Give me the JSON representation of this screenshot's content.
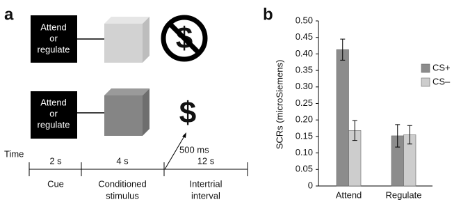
{
  "panel_a": {
    "label": "a",
    "trials": [
      {
        "cue": [
          "Attend",
          "or",
          "regulate"
        ],
        "outcome": "$"
      },
      {
        "cue": [
          "Attend",
          "or",
          "regulate"
        ],
        "outcome": "$"
      }
    ],
    "time_label": "Time",
    "delay": "500 ms",
    "phases": [
      {
        "duration": "2 s",
        "name": [
          "Cue"
        ]
      },
      {
        "duration": "4 s",
        "name": [
          "Conditioned",
          "stimulus"
        ]
      },
      {
        "duration": "12 s",
        "name": [
          "Intertrial",
          "interval"
        ]
      }
    ]
  },
  "chart_data": {
    "type": "bar",
    "panel_label": "b",
    "y_label": "SCRs (microSiemens)",
    "categories": [
      "Attend",
      "Regulate"
    ],
    "series": [
      {
        "name": "CS+",
        "color": "#8c8c8c",
        "values": [
          0.413,
          0.152
        ],
        "errors": [
          0.032,
          0.034
        ]
      },
      {
        "name": "CS–",
        "color": "#cdcdcd",
        "values": [
          0.168,
          0.155
        ],
        "errors": [
          0.03,
          0.028
        ]
      }
    ],
    "ylim": [
      0,
      0.5
    ],
    "yticks": [
      0,
      0.05,
      {
        "value": 0.1,
        "label": "0.10"
      },
      0.15,
      {
        "value": 0.2,
        "label": "0.20"
      },
      0.25,
      {
        "value": 0.3,
        "label": "0.30"
      },
      0.35,
      {
        "value": 0.4,
        "label": "0.40"
      },
      0.45,
      {
        "value": 0.5,
        "label": "0.50"
      }
    ],
    "legend": "right"
  }
}
